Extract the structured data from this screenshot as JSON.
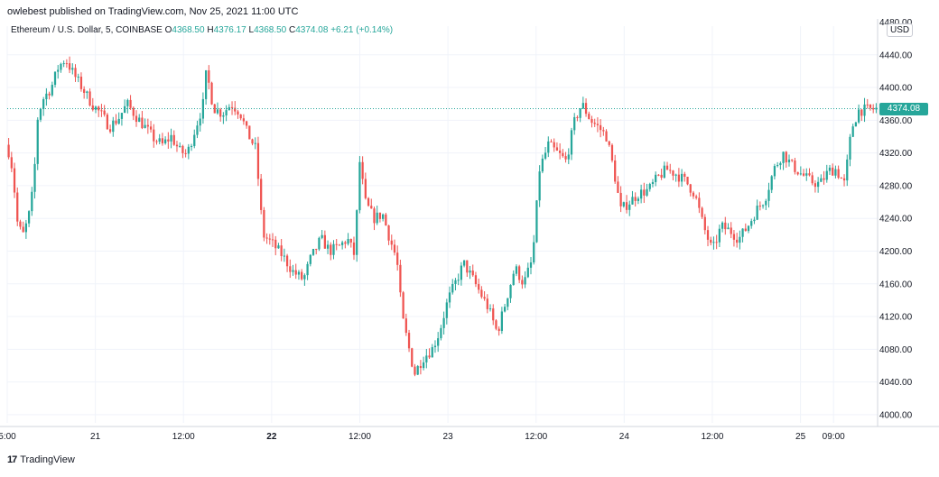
{
  "header": {
    "text": "owlebest published on TradingView.com, Nov 25, 2021 11:00 UTC"
  },
  "legend": {
    "symbol": "Ethereum / U.S. Dollar, 5, COINBASE",
    "o_label": "O",
    "o_value": "4368.50",
    "h_label": "H",
    "h_value": "4376.17",
    "l_label": "L",
    "l_value": "4368.50",
    "c_label": "C",
    "c_value": "4374.08",
    "change": "+6.21 (+0.14%)"
  },
  "currency_button": "USD",
  "footer": {
    "logo_mark": "17",
    "brand": "TradingView"
  },
  "colors": {
    "up": "#26a69a",
    "down": "#ef5350",
    "grid": "#f0f3fa"
  },
  "chart_data": {
    "type": "candlestick",
    "ylim": [
      3990,
      4475
    ],
    "y_ticks": [
      "4000.00",
      "4040.00",
      "4080.00",
      "4120.00",
      "4160.00",
      "4200.00",
      "4240.00",
      "4280.00",
      "4320.00",
      "4360.00",
      "4400.00",
      "4440.00"
    ],
    "top_clipped_tick": "4480.00",
    "x_ticks": [
      {
        "label": "5:00",
        "t": 0,
        "bold": false
      },
      {
        "label": "21",
        "t": 0.1,
        "bold": false
      },
      {
        "label": "12:00",
        "t": 0.2,
        "bold": false
      },
      {
        "label": "22",
        "t": 0.3,
        "bold": true
      },
      {
        "label": "12:00",
        "t": 0.4,
        "bold": false
      },
      {
        "label": "23",
        "t": 0.5,
        "bold": false
      },
      {
        "label": "12:00",
        "t": 0.6,
        "bold": false
      },
      {
        "label": "24",
        "t": 0.7,
        "bold": false
      },
      {
        "label": "12:00",
        "t": 0.8,
        "bold": false
      },
      {
        "label": "25",
        "t": 0.9,
        "bold": false
      },
      {
        "label": "09:00",
        "t": 0.9375,
        "bold": false
      }
    ],
    "t_range": [
      0,
      0.9875
    ],
    "last_price": 4374.08,
    "last_price_label": "4374.08",
    "candle_count": 300,
    "path": [
      [
        0.0,
        4330
      ],
      [
        0.006,
        4300
      ],
      [
        0.012,
        4230
      ],
      [
        0.018,
        4220
      ],
      [
        0.024,
        4240
      ],
      [
        0.03,
        4280
      ],
      [
        0.034,
        4360
      ],
      [
        0.04,
        4385
      ],
      [
        0.05,
        4400
      ],
      [
        0.058,
        4425
      ],
      [
        0.066,
        4435
      ],
      [
        0.076,
        4415
      ],
      [
        0.086,
        4398
      ],
      [
        0.096,
        4380
      ],
      [
        0.106,
        4368
      ],
      [
        0.116,
        4352
      ],
      [
        0.126,
        4362
      ],
      [
        0.136,
        4380
      ],
      [
        0.146,
        4365
      ],
      [
        0.156,
        4352
      ],
      [
        0.166,
        4338
      ],
      [
        0.176,
        4330
      ],
      [
        0.186,
        4340
      ],
      [
        0.196,
        4322
      ],
      [
        0.204,
        4318
      ],
      [
        0.214,
        4352
      ],
      [
        0.222,
        4378
      ],
      [
        0.226,
        4420
      ],
      [
        0.234,
        4375
      ],
      [
        0.244,
        4368
      ],
      [
        0.254,
        4380
      ],
      [
        0.264,
        4370
      ],
      [
        0.272,
        4345
      ],
      [
        0.282,
        4325
      ],
      [
        0.29,
        4220
      ],
      [
        0.3,
        4210
      ],
      [
        0.312,
        4195
      ],
      [
        0.324,
        4175
      ],
      [
        0.336,
        4165
      ],
      [
        0.344,
        4190
      ],
      [
        0.356,
        4215
      ],
      [
        0.366,
        4200
      ],
      [
        0.376,
        4205
      ],
      [
        0.386,
        4215
      ],
      [
        0.394,
        4195
      ],
      [
        0.4,
        4310
      ],
      [
        0.406,
        4260
      ],
      [
        0.416,
        4240
      ],
      [
        0.426,
        4245
      ],
      [
        0.434,
        4215
      ],
      [
        0.442,
        4190
      ],
      [
        0.448,
        4120
      ],
      [
        0.456,
        4080
      ],
      [
        0.462,
        4050
      ],
      [
        0.472,
        4070
      ],
      [
        0.482,
        4080
      ],
      [
        0.49,
        4100
      ],
      [
        0.5,
        4140
      ],
      [
        0.508,
        4160
      ],
      [
        0.518,
        4185
      ],
      [
        0.526,
        4170
      ],
      [
        0.536,
        4150
      ],
      [
        0.546,
        4130
      ],
      [
        0.556,
        4100
      ],
      [
        0.566,
        4140
      ],
      [
        0.576,
        4180
      ],
      [
        0.586,
        4160
      ],
      [
        0.596,
        4190
      ],
      [
        0.604,
        4300
      ],
      [
        0.614,
        4330
      ],
      [
        0.624,
        4320
      ],
      [
        0.634,
        4310
      ],
      [
        0.644,
        4360
      ],
      [
        0.652,
        4380
      ],
      [
        0.662,
        4360
      ],
      [
        0.672,
        4350
      ],
      [
        0.68,
        4340
      ],
      [
        0.688,
        4300
      ],
      [
        0.696,
        4250
      ],
      [
        0.706,
        4260
      ],
      [
        0.716,
        4270
      ],
      [
        0.728,
        4275
      ],
      [
        0.738,
        4290
      ],
      [
        0.748,
        4300
      ],
      [
        0.758,
        4295
      ],
      [
        0.77,
        4285
      ],
      [
        0.78,
        4270
      ],
      [
        0.79,
        4230
      ],
      [
        0.8,
        4200
      ],
      [
        0.81,
        4230
      ],
      [
        0.82,
        4225
      ],
      [
        0.83,
        4215
      ],
      [
        0.84,
        4230
      ],
      [
        0.85,
        4250
      ],
      [
        0.86,
        4265
      ],
      [
        0.87,
        4300
      ],
      [
        0.88,
        4320
      ],
      [
        0.89,
        4305
      ],
      [
        0.9,
        4295
      ],
      [
        0.912,
        4285
      ],
      [
        0.922,
        4282
      ],
      [
        0.932,
        4298
      ],
      [
        0.94,
        4300
      ],
      [
        0.95,
        4282
      ],
      [
        0.958,
        4350
      ],
      [
        0.966,
        4372
      ],
      [
        0.9875,
        4374
      ]
    ]
  }
}
